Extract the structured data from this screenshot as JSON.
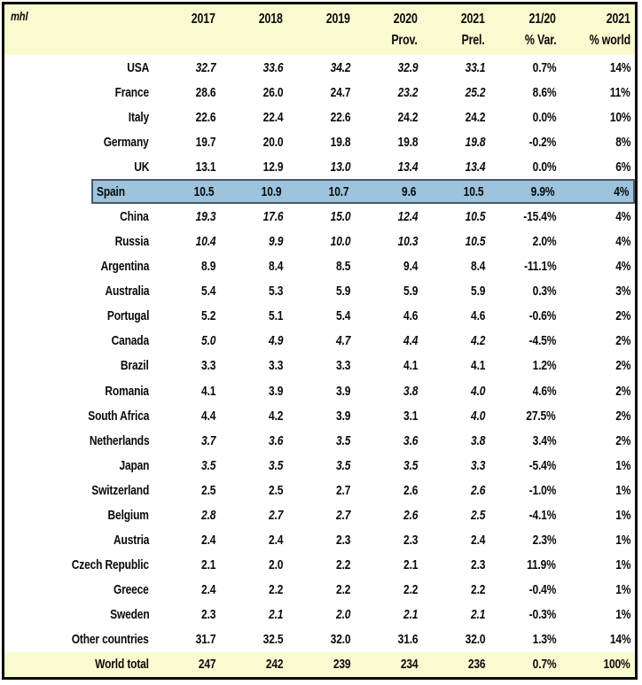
{
  "unit_label": "mhl",
  "colors": {
    "header_bg": "#FAFAD0",
    "highlight_bg": "#9DC3DD",
    "highlight_border": "#46596B",
    "frame_border": "#0A0A0A",
    "row_bg": "#FFFFFF",
    "text": "#0A0A0A"
  },
  "header": {
    "columns": [
      {
        "line1": "2017",
        "line2": ""
      },
      {
        "line1": "2018",
        "line2": ""
      },
      {
        "line1": "2019",
        "line2": ""
      },
      {
        "line1": "2020",
        "line2": "Prov."
      },
      {
        "line1": "2021",
        "line2": "Prel."
      },
      {
        "line1": "21/20",
        "line2": "% Var."
      },
      {
        "line1": "2021",
        "line2": "% world"
      }
    ]
  },
  "table": {
    "rows": [
      {
        "country": "USA",
        "values": [
          "32.7",
          "33.6",
          "34.2",
          "32.9",
          "33.1"
        ],
        "italics": [
          true,
          true,
          true,
          true,
          true
        ],
        "var_pct": "0.7%",
        "world_pct": "14%",
        "highlight": false,
        "total": false
      },
      {
        "country": "France",
        "values": [
          "28.6",
          "26.0",
          "24.7",
          "23.2",
          "25.2"
        ],
        "italics": [
          false,
          false,
          false,
          true,
          true
        ],
        "var_pct": "8.6%",
        "world_pct": "11%",
        "highlight": false,
        "total": false
      },
      {
        "country": "Italy",
        "values": [
          "22.6",
          "22.4",
          "22.6",
          "24.2",
          "24.2"
        ],
        "italics": [
          false,
          false,
          false,
          false,
          false
        ],
        "var_pct": "0.0%",
        "world_pct": "10%",
        "highlight": false,
        "total": false
      },
      {
        "country": "Germany",
        "values": [
          "19.7",
          "20.0",
          "19.8",
          "19.8",
          "19.8"
        ],
        "italics": [
          false,
          false,
          false,
          false,
          true
        ],
        "var_pct": "-0.2%",
        "world_pct": "8%",
        "highlight": false,
        "total": false
      },
      {
        "country": "UK",
        "values": [
          "13.1",
          "12.9",
          "13.0",
          "13.4",
          "13.4"
        ],
        "italics": [
          false,
          false,
          true,
          true,
          true
        ],
        "var_pct": "0.0%",
        "world_pct": "6%",
        "highlight": false,
        "total": false
      },
      {
        "country": "Spain",
        "values": [
          "10.5",
          "10.9",
          "10.7",
          "9.6",
          "10.5"
        ],
        "italics": [
          false,
          false,
          false,
          false,
          false
        ],
        "var_pct": "9.9%",
        "world_pct": "4%",
        "highlight": true,
        "total": false
      },
      {
        "country": "China",
        "values": [
          "19.3",
          "17.6",
          "15.0",
          "12.4",
          "10.5"
        ],
        "italics": [
          true,
          true,
          true,
          true,
          true
        ],
        "var_pct": "-15.4%",
        "world_pct": "4%",
        "highlight": false,
        "total": false
      },
      {
        "country": "Russia",
        "values": [
          "10.4",
          "9.9",
          "10.0",
          "10.3",
          "10.5"
        ],
        "italics": [
          true,
          true,
          true,
          true,
          true
        ],
        "var_pct": "2.0%",
        "world_pct": "4%",
        "highlight": false,
        "total": false
      },
      {
        "country": "Argentina",
        "values": [
          "8.9",
          "8.4",
          "8.5",
          "9.4",
          "8.4"
        ],
        "italics": [
          false,
          false,
          false,
          false,
          false
        ],
        "var_pct": "-11.1%",
        "world_pct": "4%",
        "highlight": false,
        "total": false
      },
      {
        "country": "Australia",
        "values": [
          "5.4",
          "5.3",
          "5.9",
          "5.9",
          "5.9"
        ],
        "italics": [
          false,
          false,
          false,
          false,
          false
        ],
        "var_pct": "0.3%",
        "world_pct": "3%",
        "highlight": false,
        "total": false
      },
      {
        "country": "Portugal",
        "values": [
          "5.2",
          "5.1",
          "5.4",
          "4.6",
          "4.6"
        ],
        "italics": [
          false,
          false,
          false,
          false,
          false
        ],
        "var_pct": "-0.6%",
        "world_pct": "2%",
        "highlight": false,
        "total": false
      },
      {
        "country": "Canada",
        "values": [
          "5.0",
          "4.9",
          "4.7",
          "4.4",
          "4.2"
        ],
        "italics": [
          true,
          true,
          true,
          true,
          true
        ],
        "var_pct": "-4.5%",
        "world_pct": "2%",
        "highlight": false,
        "total": false
      },
      {
        "country": "Brazil",
        "values": [
          "3.3",
          "3.3",
          "3.3",
          "4.1",
          "4.1"
        ],
        "italics": [
          false,
          false,
          false,
          false,
          false
        ],
        "var_pct": "1.2%",
        "world_pct": "2%",
        "highlight": false,
        "total": false
      },
      {
        "country": "Romania",
        "values": [
          "4.1",
          "3.9",
          "3.9",
          "3.8",
          "4.0"
        ],
        "italics": [
          false,
          false,
          false,
          true,
          true
        ],
        "var_pct": "4.6%",
        "world_pct": "2%",
        "highlight": false,
        "total": false
      },
      {
        "country": "South Africa",
        "values": [
          "4.4",
          "4.2",
          "3.9",
          "3.1",
          "4.0"
        ],
        "italics": [
          false,
          false,
          false,
          false,
          true
        ],
        "var_pct": "27.5%",
        "world_pct": "2%",
        "highlight": false,
        "total": false
      },
      {
        "country": "Netherlands",
        "values": [
          "3.7",
          "3.6",
          "3.5",
          "3.6",
          "3.8"
        ],
        "italics": [
          true,
          true,
          true,
          true,
          true
        ],
        "var_pct": "3.4%",
        "world_pct": "2%",
        "highlight": false,
        "total": false
      },
      {
        "country": "Japan",
        "values": [
          "3.5",
          "3.5",
          "3.5",
          "3.5",
          "3.3"
        ],
        "italics": [
          true,
          true,
          true,
          true,
          true
        ],
        "var_pct": "-5.4%",
        "world_pct": "1%",
        "highlight": false,
        "total": false
      },
      {
        "country": "Switzerland",
        "values": [
          "2.5",
          "2.5",
          "2.7",
          "2.6",
          "2.6"
        ],
        "italics": [
          false,
          false,
          false,
          false,
          true
        ],
        "var_pct": "-1.0%",
        "world_pct": "1%",
        "highlight": false,
        "total": false
      },
      {
        "country": "Belgium",
        "values": [
          "2.8",
          "2.7",
          "2.7",
          "2.6",
          "2.5"
        ],
        "italics": [
          true,
          true,
          true,
          true,
          true
        ],
        "var_pct": "-4.1%",
        "world_pct": "1%",
        "highlight": false,
        "total": false
      },
      {
        "country": "Austria",
        "values": [
          "2.4",
          "2.4",
          "2.3",
          "2.3",
          "2.4"
        ],
        "italics": [
          false,
          false,
          false,
          false,
          false
        ],
        "var_pct": "2.3%",
        "world_pct": "1%",
        "highlight": false,
        "total": false
      },
      {
        "country": "Czech Republic",
        "values": [
          "2.1",
          "2.0",
          "2.2",
          "2.1",
          "2.3"
        ],
        "italics": [
          false,
          false,
          false,
          false,
          false
        ],
        "var_pct": "11.9%",
        "world_pct": "1%",
        "highlight": false,
        "total": false
      },
      {
        "country": "Greece",
        "values": [
          "2.4",
          "2.2",
          "2.2",
          "2.2",
          "2.2"
        ],
        "italics": [
          false,
          false,
          false,
          false,
          false
        ],
        "var_pct": "-0.4%",
        "world_pct": "1%",
        "highlight": false,
        "total": false
      },
      {
        "country": "Sweden",
        "values": [
          "2.3",
          "2.1",
          "2.0",
          "2.1",
          "2.1"
        ],
        "italics": [
          false,
          true,
          true,
          true,
          true
        ],
        "var_pct": "-0.3%",
        "world_pct": "1%",
        "highlight": false,
        "total": false
      },
      {
        "country": "Other countries",
        "values": [
          "31.7",
          "32.5",
          "32.0",
          "31.6",
          "32.0"
        ],
        "italics": [
          false,
          false,
          false,
          false,
          false
        ],
        "var_pct": "1.3%",
        "world_pct": "14%",
        "highlight": false,
        "total": false
      },
      {
        "country": "World total",
        "values": [
          "247",
          "242",
          "239",
          "234",
          "236"
        ],
        "italics": [
          false,
          false,
          false,
          false,
          false
        ],
        "var_pct": "0.7%",
        "world_pct": "100%",
        "highlight": false,
        "total": true
      }
    ]
  }
}
